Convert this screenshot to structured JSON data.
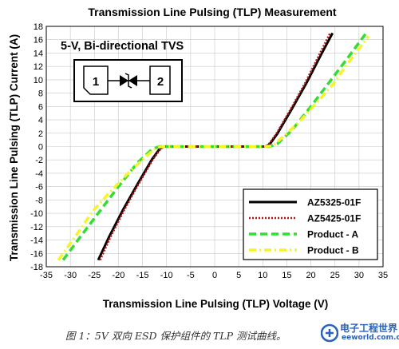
{
  "chart_data": {
    "type": "line",
    "title": "Transmission Line Pulsing (TLP) Measurement",
    "xlabel": "Transmission Line Pulsing (TLP) Voltage (V)",
    "ylabel": "Transmission Line Pulsing (TLP) Current (A)",
    "xlim": [
      -35,
      35
    ],
    "ylim": [
      -18,
      18
    ],
    "xticks": [
      "-35",
      "-30",
      "-25",
      "-20",
      "-15",
      "-10",
      "-5",
      "0",
      "5",
      "10",
      "15",
      "20",
      "25",
      "30",
      "35"
    ],
    "yticks": [
      "-18",
      "-16",
      "-14",
      "-12",
      "-10",
      "-8",
      "-6",
      "-4",
      "-2",
      "0",
      "2",
      "4",
      "6",
      "8",
      "10",
      "12",
      "14",
      "16",
      "18"
    ],
    "grid": true,
    "legend_position": "bottom-right",
    "annotation": "5-V, Bi-directional TVS",
    "inset_pins": [
      "1",
      "2"
    ],
    "series": [
      {
        "name": "AZ5325-01F",
        "color": "#000000",
        "dash": "solid",
        "points": [
          [
            -24.2,
            -17
          ],
          [
            -22,
            -13.6
          ],
          [
            -19,
            -9.4
          ],
          [
            -16,
            -5.6
          ],
          [
            -13,
            -1.9
          ],
          [
            -11.4,
            -0.3
          ],
          [
            -10.5,
            0
          ],
          [
            -5,
            0
          ],
          [
            0,
            0
          ],
          [
            5,
            0
          ],
          [
            10.5,
            0
          ],
          [
            11.4,
            0.3
          ],
          [
            13,
            1.9
          ],
          [
            16,
            5.6
          ],
          [
            19,
            9.4
          ],
          [
            22,
            13.6
          ],
          [
            24.5,
            17
          ]
        ]
      },
      {
        "name": "AZ5425-01F",
        "color": "#b01818",
        "dash": "dotted",
        "points": [
          [
            -23.8,
            -17
          ],
          [
            -21.7,
            -13.6
          ],
          [
            -18.8,
            -9.5
          ],
          [
            -15.8,
            -5.6
          ],
          [
            -12.8,
            -1.9
          ],
          [
            -11.2,
            -0.3
          ],
          [
            -10.3,
            0
          ],
          [
            -5,
            0
          ],
          [
            0,
            0
          ],
          [
            5,
            0
          ],
          [
            10.3,
            0
          ],
          [
            11.2,
            0.3
          ],
          [
            12.8,
            1.9
          ],
          [
            15.8,
            5.6
          ],
          [
            18.8,
            9.5
          ],
          [
            21.5,
            13.4
          ],
          [
            24,
            17
          ]
        ]
      },
      {
        "name": "Product - A",
        "color": "#33dd33",
        "dash": "dashed",
        "points": [
          [
            -31.5,
            -17
          ],
          [
            -28,
            -13.6
          ],
          [
            -24,
            -9.8
          ],
          [
            -20,
            -6
          ],
          [
            -16,
            -2.4
          ],
          [
            -13,
            -0.4
          ],
          [
            -11.5,
            0
          ],
          [
            -5,
            0
          ],
          [
            0,
            0
          ],
          [
            5,
            0
          ],
          [
            11.5,
            0
          ],
          [
            13,
            0.4
          ],
          [
            16,
            2.4
          ],
          [
            20,
            6
          ],
          [
            24,
            9.8
          ],
          [
            28,
            13.6
          ],
          [
            31.5,
            17
          ]
        ]
      },
      {
        "name": "Product - B",
        "color": "#f4f42a",
        "dash": "dashdot",
        "points": [
          [
            -32.5,
            -17
          ],
          [
            -30,
            -14.5
          ],
          [
            -27.5,
            -12
          ],
          [
            -25.5,
            -9.8
          ],
          [
            -22.5,
            -7.4
          ],
          [
            -18,
            -4
          ],
          [
            -14,
            -1.3
          ],
          [
            -12,
            -0.1
          ],
          [
            -10,
            0
          ],
          [
            0,
            0
          ],
          [
            10,
            0
          ],
          [
            12,
            0.1
          ],
          [
            14,
            1.3
          ],
          [
            18,
            4
          ],
          [
            21.5,
            6.8
          ],
          [
            24.5,
            9.2
          ],
          [
            27,
            11.8
          ],
          [
            29.5,
            14.2
          ],
          [
            32,
            16.5
          ]
        ]
      }
    ]
  }
}
